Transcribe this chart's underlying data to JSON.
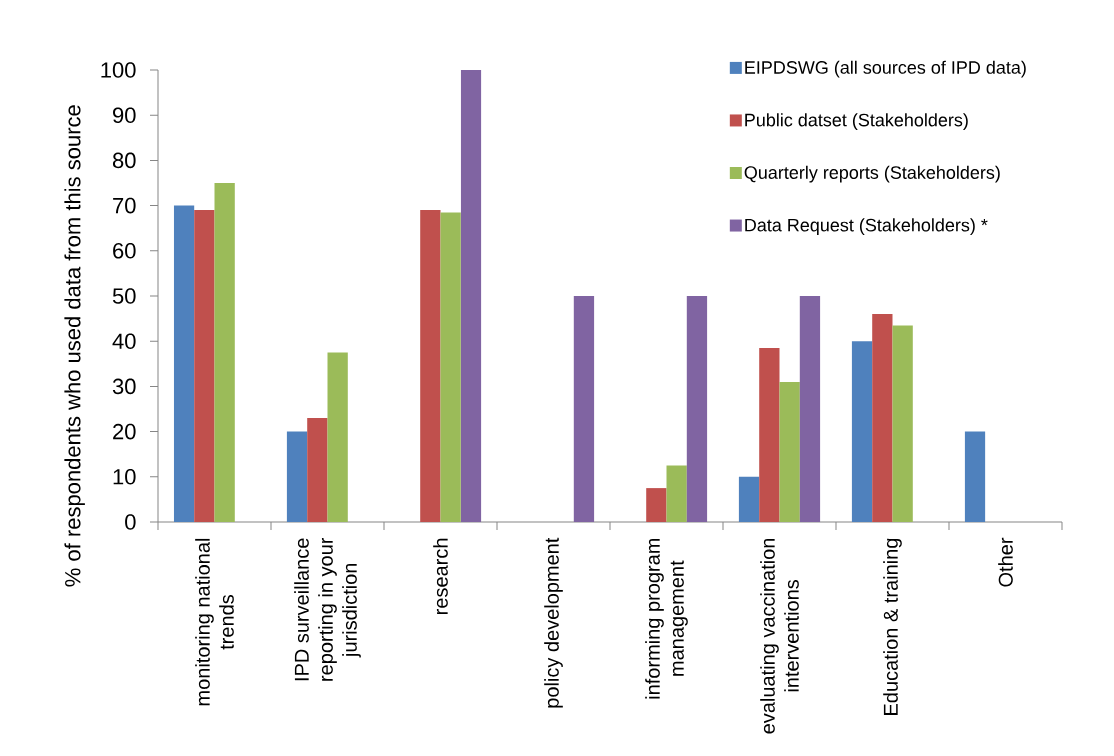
{
  "chart_data": {
    "type": "bar",
    "ylabel": "% of respondents who used data from this source",
    "categories": [
      "monitoring national trends",
      "IPD surveillance reporting in your jurisdiction",
      "research",
      "policy development",
      "informing program management",
      "evaluating vaccination interventions",
      "Education & training",
      "Other"
    ],
    "series": [
      {
        "name": "EIPDSWG (all sources of IPD data)",
        "color": "#4f81bd",
        "values": [
          70,
          20,
          null,
          null,
          null,
          10,
          40,
          20
        ]
      },
      {
        "name": "Public datset (Stakeholders)",
        "color": "#c0504d",
        "values": [
          69,
          23,
          69,
          null,
          7.5,
          38.5,
          46,
          null
        ]
      },
      {
        "name": "Quarterly reports (Stakeholders)",
        "color": "#9bbb59",
        "values": [
          75,
          37.5,
          68.5,
          null,
          12.5,
          31,
          43.5,
          null
        ]
      },
      {
        "name": "Data Request (Stakeholders) *",
        "color": "#8064a2",
        "values": [
          null,
          null,
          100,
          50,
          50,
          50,
          null,
          null
        ]
      }
    ],
    "ylim": [
      0,
      100
    ],
    "yticks": [
      0,
      10,
      20,
      30,
      40,
      50,
      60,
      70,
      80,
      90,
      100
    ],
    "legend": "top right"
  }
}
